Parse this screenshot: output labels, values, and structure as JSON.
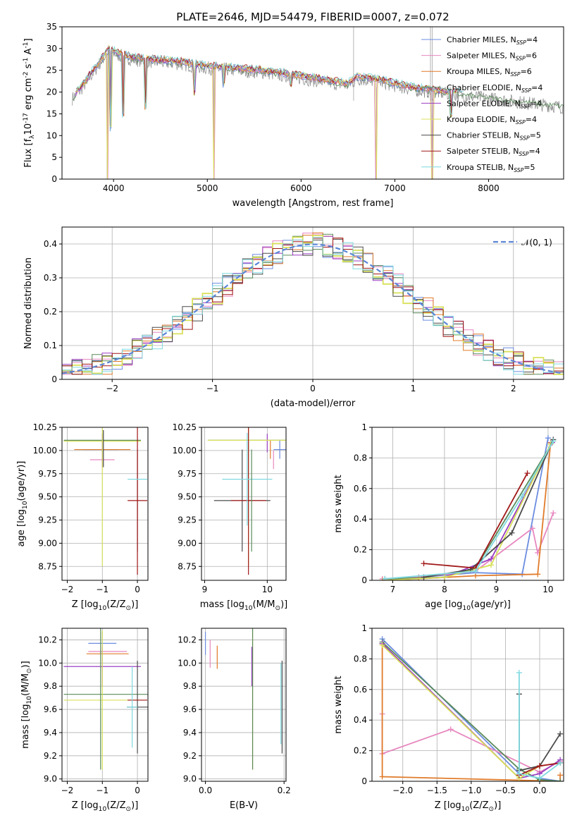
{
  "figure_title": "PLATE=2646, MJD=54479, FIBERID=0007, z=0.072",
  "palette": [
    "#6b8ce0",
    "#e787bf",
    "#e07b2b",
    "#5a8a5a",
    "#9b3fc2",
    "#d9e05a",
    "#4a4a4a",
    "#a01818",
    "#7fd9e0"
  ],
  "chart_data": [
    {
      "id": "spectrum",
      "type": "line",
      "xlabel": "wavelength [Angstrom, rest frame]",
      "ylabel": "Flux [f$_\\lambda$10$^{-17}$ erg cm$^{-2}$ s$^{-1}$ A$^{-1}$]",
      "xlim": [
        3450,
        8800
      ],
      "ylim": [
        0,
        35
      ],
      "xticks": [
        4000,
        5000,
        6000,
        7000,
        8000
      ],
      "yticks": [
        0,
        5,
        10,
        15,
        20,
        25,
        30,
        35
      ],
      "legend_position": "top-right",
      "legend": [
        {
          "label": "Chabrier MILES, N",
          "sub": "SSP",
          "suffix": "=4"
        },
        {
          "label": "Salpeter MILES, N",
          "sub": "SSP",
          "suffix": "=6"
        },
        {
          "label": "Kroupa MILES, N",
          "sub": "SSP",
          "suffix": "=6"
        },
        {
          "label": "Chabrier ELODIE, N",
          "sub": "SSP",
          "suffix": "=4"
        },
        {
          "label": "Salpeter ELODIE, N",
          "sub": "SSP",
          "suffix": "=4"
        },
        {
          "label": "Kroupa ELODIE, N",
          "sub": "SSP",
          "suffix": "=4"
        },
        {
          "label": "Chabrier STELIB, N",
          "sub": "SSP",
          "suffix": "=5"
        },
        {
          "label": "Salpeter STELIB, N",
          "sub": "SSP",
          "suffix": "=4"
        },
        {
          "label": "Kroupa STELIB, N",
          "sub": "SSP",
          "suffix": "=5"
        }
      ],
      "continuum": {
        "x": [
          3560,
          3650,
          3750,
          3850,
          3950,
          4050,
          4200,
          4400,
          4700,
          5000,
          5300,
          5600,
          5900,
          6200,
          6500,
          6600,
          6800,
          7000,
          7200,
          7400,
          7600,
          7800,
          8000,
          8200,
          8400,
          8600,
          8800
        ],
        "y": [
          19,
          21,
          24,
          27,
          30,
          29,
          28,
          27.5,
          27,
          26,
          25.5,
          25,
          24,
          23,
          22,
          23.5,
          23,
          22,
          21,
          20.5,
          20,
          19.5,
          19,
          18.5,
          18,
          17.5,
          17
        ]
      },
      "absorption_dips": [
        {
          "x": 3934,
          "y": 0
        },
        {
          "x": 3968,
          "y": 11
        },
        {
          "x": 4102,
          "y": 14
        },
        {
          "x": 4340,
          "y": 16
        },
        {
          "x": 4861,
          "y": 19
        },
        {
          "x": 5070,
          "y": 0
        },
        {
          "x": 5175,
          "y": 21
        },
        {
          "x": 5890,
          "y": 21
        },
        {
          "x": 6800,
          "y": 0
        },
        {
          "x": 7400,
          "y": 0
        },
        {
          "x": 7600,
          "y": 14
        }
      ]
    },
    {
      "id": "residuals",
      "type": "line",
      "xlabel": "(data-model)/error",
      "ylabel": "Normed distribution",
      "xlim": [
        -2.5,
        2.5
      ],
      "ylim": [
        0,
        0.45
      ],
      "xticks": [
        -2,
        -1,
        0,
        1,
        2
      ],
      "yticks": [
        0.0,
        0.1,
        0.2,
        0.3,
        0.4
      ],
      "grid": true,
      "legend_position": "top-right",
      "legend_label": "𝒩(0, 1)",
      "gaussian": {
        "mean": 0,
        "sigma": 1
      }
    },
    {
      "id": "age-vs-Z",
      "type": "scatter",
      "xlabel": "Z [log$_{10}$(Z/Z$_\\odot$)]",
      "ylabel": "age  [log$_{10}$(age/yr)]",
      "xlim": [
        -2.15,
        0.3
      ],
      "ylim": [
        8.6,
        10.25
      ],
      "xticks": [
        -2,
        -1,
        0
      ],
      "yticks": [
        8.75,
        9.0,
        9.25,
        9.5,
        9.75,
        10.0,
        10.25
      ],
      "ytick_labels": [
        "8.75",
        "9.00",
        "9.25",
        "9.50",
        "9.75",
        "10.00",
        "10.25"
      ],
      "grid": true,
      "points": [
        {
          "s": 0,
          "x": -1.05,
          "y": 10.01,
          "xe": 0.5,
          "ye": 0.0
        },
        {
          "s": 1,
          "x": -1.0,
          "y": 9.9,
          "xe": 0.35,
          "ye": 0.0
        },
        {
          "s": 2,
          "x": -1.0,
          "y": 10.01,
          "xe": 0.8,
          "ye": 0.0
        },
        {
          "s": 3,
          "x": -1.0,
          "y": 10.11,
          "xe": 1.1,
          "ye": 0.0
        },
        {
          "s": 4,
          "x": -1.0,
          "y": 10.0,
          "xe": 0.0,
          "ye": 0.18
        },
        {
          "s": 5,
          "x": -1.0,
          "y": 10.1,
          "xe": 1.1,
          "ye": 1.35
        },
        {
          "s": 6,
          "x": 0.0,
          "y": 9.46,
          "xe": 0.0,
          "ye": 0.55
        },
        {
          "s": 7,
          "x": 0.0,
          "y": 9.46,
          "xe": 0.28,
          "ye": 0.8
        },
        {
          "s": 8,
          "x": 0.0,
          "y": 9.69,
          "xe": 0.28,
          "ye": 0.0
        },
        {
          "s": 6,
          "x": -0.97,
          "y": 10.02,
          "xe": 0.0,
          "ye": 0.2
        }
      ]
    },
    {
      "id": "age-vs-mass",
      "type": "scatter",
      "xlabel": "mass [log$_{10}$(M/M$_\\odot$)]",
      "ylabel": "",
      "xlim": [
        8.95,
        10.3
      ],
      "ylim": [
        8.6,
        10.25
      ],
      "xticks": [
        9,
        10
      ],
      "yticks": [
        8.75,
        9.0,
        9.25,
        9.5,
        9.75,
        10.0,
        10.25
      ],
      "ytick_labels": [
        "8.75",
        "9.00",
        "9.25",
        "9.50",
        "9.75",
        "10.00",
        "10.25"
      ],
      "grid": true,
      "points": [
        {
          "s": 0,
          "x": 10.2,
          "y": 10.01,
          "xe": 0.1,
          "ye": 0.1
        },
        {
          "s": 1,
          "x": 10.1,
          "y": 9.9,
          "xe": 0.0,
          "ye": 0.1
        },
        {
          "s": 2,
          "x": 10.05,
          "y": 10.01,
          "xe": 0.0,
          "ye": 0.1
        },
        {
          "s": 3,
          "x": 9.7,
          "y": 10.11,
          "xe": 0.65,
          "ye": 0.0
        },
        {
          "s": 4,
          "x": 10.0,
          "y": 10.08,
          "xe": 0.0,
          "ye": 0.1
        },
        {
          "s": 5,
          "x": 9.7,
          "y": 10.11,
          "xe": 0.65,
          "ye": 1.35
        },
        {
          "s": 6,
          "x": 9.6,
          "y": 9.46,
          "xe": 0.45,
          "ye": 0.55
        },
        {
          "s": 7,
          "x": 9.7,
          "y": 9.46,
          "xe": 0.28,
          "ye": 0.8
        },
        {
          "s": 8,
          "x": 9.68,
          "y": 9.69,
          "xe": 0.4,
          "ye": 0.5
        },
        {
          "s": 3,
          "x": 9.75,
          "y": 9.46,
          "xe": 0.0,
          "ye": 0.55
        }
      ]
    },
    {
      "id": "massweight-vs-age",
      "type": "line",
      "xlabel": "age  [log$_{10}$(age/yr)]",
      "ylabel": "mass weight",
      "xlim": [
        6.6,
        10.3
      ],
      "ylim": [
        0,
        1.0
      ],
      "xticks": [
        7,
        8,
        9,
        10
      ],
      "yticks": [
        0.0,
        0.2,
        0.4,
        0.6,
        0.8,
        1.0
      ],
      "grid": true,
      "series": [
        {
          "s": 0,
          "x": [
            6.85,
            7.5,
            8.6,
            9.5,
            10.0
          ],
          "y": [
            0.0,
            0.02,
            0.05,
            0.04,
            0.93
          ]
        },
        {
          "s": 1,
          "x": [
            6.8,
            7.5,
            8.6,
            9.7,
            9.8,
            10.1
          ],
          "y": [
            0.01,
            0.02,
            0.06,
            0.34,
            0.18,
            0.44
          ]
        },
        {
          "s": 2,
          "x": [
            6.8,
            7.5,
            8.6,
            9.8,
            10.05
          ],
          "y": [
            0.0,
            0.01,
            0.03,
            0.04,
            0.9
          ]
        },
        {
          "s": 3,
          "x": [
            6.85,
            8.0,
            8.6,
            10.1
          ],
          "y": [
            0.01,
            0.02,
            0.08,
            0.91
          ]
        },
        {
          "s": 4,
          "x": [
            6.85,
            8.0,
            8.9,
            10.08
          ],
          "y": [
            0.0,
            0.02,
            0.14,
            0.9
          ]
        },
        {
          "s": 5,
          "x": [
            6.85,
            8.0,
            8.9,
            10.05
          ],
          "y": [
            0.0,
            0.02,
            0.1,
            0.89
          ]
        },
        {
          "s": 6,
          "x": [
            7.6,
            8.5,
            9.3,
            10.1
          ],
          "y": [
            0.02,
            0.07,
            0.31,
            0.92
          ]
        },
        {
          "s": 7,
          "x": [
            7.6,
            8.6,
            9.6
          ],
          "y": [
            0.11,
            0.08,
            0.7
          ]
        },
        {
          "s": 8,
          "x": [
            6.85,
            8.6,
            9.5,
            10.1
          ],
          "y": [
            0.01,
            0.06,
            0.55,
            0.91
          ]
        }
      ]
    },
    {
      "id": "mass-vs-Z",
      "type": "scatter",
      "xlabel": "Z [log$_{10}$(Z/Z$_\\odot$)]",
      "ylabel": "mass [log$_{10}$(M/M$_\\odot$)]",
      "xlim": [
        -2.15,
        0.3
      ],
      "ylim": [
        8.98,
        10.3
      ],
      "xticks": [
        -2,
        -1,
        0
      ],
      "yticks": [
        9.0,
        9.2,
        9.4,
        9.6,
        9.8,
        10.0,
        10.2
      ],
      "ytick_labels": [
        "9.0",
        "9.2",
        "9.4",
        "9.6",
        "9.8",
        "10.0",
        "10.2"
      ],
      "grid": true,
      "points": [
        {
          "s": 0,
          "x": -1.0,
          "y": 10.17,
          "xe": 0.4,
          "ye": 0.1
        },
        {
          "s": 1,
          "x": -0.85,
          "y": 10.1,
          "xe": 0.55,
          "ye": 0.0
        },
        {
          "s": 2,
          "x": -0.85,
          "y": 10.08,
          "xe": 0.6,
          "ye": 0.0
        },
        {
          "s": 3,
          "x": -0.9,
          "y": 9.73,
          "xe": 1.2,
          "ye": 0.0
        },
        {
          "s": 4,
          "x": -1.0,
          "y": 9.97,
          "xe": 1.1,
          "ye": 0.17
        },
        {
          "s": 5,
          "x": -1.0,
          "y": 9.68,
          "xe": 1.1,
          "ye": 0.6
        },
        {
          "s": 6,
          "x": 0.0,
          "y": 9.62,
          "xe": 0.3,
          "ye": 0.4
        },
        {
          "s": 7,
          "x": 0.0,
          "y": 9.68,
          "xe": 0.28,
          "ye": 0.0
        },
        {
          "s": 8,
          "x": -0.15,
          "y": 9.62,
          "xe": 0.15,
          "ye": 0.35
        },
        {
          "s": 3,
          "x": -1.05,
          "y": 9.73,
          "xe": 0.0,
          "ye": 0.65
        }
      ]
    },
    {
      "id": "mass-vs-EBV",
      "type": "scatter",
      "xlabel": "E(B-V)",
      "ylabel": "",
      "xlim": [
        -0.01,
        0.205
      ],
      "ylim": [
        8.98,
        10.3
      ],
      "xticks": [
        0.0,
        0.2
      ],
      "xtick_labels": [
        "0.0",
        "0.2"
      ],
      "yticks": [
        9.0,
        9.2,
        9.4,
        9.6,
        9.8,
        10.0,
        10.2
      ],
      "ytick_labels": [
        "9.0",
        "9.2",
        "9.4",
        "9.6",
        "9.8",
        "10.0",
        "10.2"
      ],
      "grid": true,
      "points": [
        {
          "s": 0,
          "x": 0.0,
          "y": 10.17,
          "xe": 0.0,
          "ye": 0.1
        },
        {
          "s": 1,
          "x": 0.012,
          "y": 10.08,
          "xe": 0.0,
          "ye": 0.12
        },
        {
          "s": 2,
          "x": 0.03,
          "y": 10.05,
          "xe": 0.0,
          "ye": 0.1
        },
        {
          "s": 4,
          "x": 0.118,
          "y": 9.97,
          "xe": 0.0,
          "ye": 0.17
        },
        {
          "s": 5,
          "x": 0.12,
          "y": 9.68,
          "xe": 0.0,
          "ye": 0.6
        },
        {
          "s": 3,
          "x": 0.12,
          "y": 9.73,
          "xe": 0.0,
          "ye": 0.65
        },
        {
          "s": 6,
          "x": 0.195,
          "y": 9.62,
          "xe": 0.0,
          "ye": 0.4
        },
        {
          "s": 8,
          "x": 0.192,
          "y": 9.65,
          "xe": 0.0,
          "ye": 0.35
        }
      ]
    },
    {
      "id": "massweight-vs-Z",
      "type": "line",
      "xlabel": "Z [log$_{10}$(Z/Z$_\\odot$)]",
      "ylabel": "mass weight",
      "xlim": [
        -2.45,
        0.35
      ],
      "ylim": [
        0,
        1.0
      ],
      "xticks": [
        -2.0,
        -1.5,
        -1.0,
        -0.5,
        0.0
      ],
      "xtick_labels": [
        "−2.0",
        "−1.5",
        "−1.0",
        "−0.5",
        "0.0"
      ],
      "yticks": [
        0.0,
        0.2,
        0.4,
        0.6,
        0.8,
        1.0
      ],
      "grid": true,
      "series": [
        {
          "s": 0,
          "x": [
            -2.3,
            -0.3,
            0.0,
            0.3
          ],
          "y": [
            0.93,
            0.05,
            0.02,
            0.0
          ]
        },
        {
          "s": 1,
          "x": [
            -2.3,
            -2.3,
            -1.3,
            0.0,
            0.3
          ],
          "y": [
            0.44,
            0.18,
            0.34,
            0.06,
            0.13
          ]
        },
        {
          "s": 2,
          "x": [
            -2.3,
            -2.3,
            0.3,
            0.3
          ],
          "y": [
            0.9,
            0.03,
            0.0,
            0.04
          ]
        },
        {
          "s": 3,
          "x": [
            -2.3,
            -0.3,
            0.0,
            0.3
          ],
          "y": [
            0.91,
            0.08,
            0.01,
            0.0
          ]
        },
        {
          "s": 4,
          "x": [
            -2.3,
            -0.3,
            0.0,
            0.3
          ],
          "y": [
            0.9,
            0.02,
            0.05,
            0.14
          ]
        },
        {
          "s": 5,
          "x": [
            -2.3,
            -0.3,
            0.0
          ],
          "y": [
            0.89,
            0.02,
            0.1
          ]
        },
        {
          "s": 6,
          "x": [
            -0.3,
            -0.3,
            0.0,
            0.3
          ],
          "y": [
            0.57,
            0.07,
            0.1,
            0.31
          ]
        },
        {
          "s": 7,
          "x": [
            -0.3,
            0.0,
            0.3
          ],
          "y": [
            0.04,
            0.1,
            0.12
          ]
        },
        {
          "s": 8,
          "x": [
            -0.3,
            -0.3,
            0.0,
            0.3
          ],
          "y": [
            0.71,
            0.05,
            0.02,
            0.12
          ]
        }
      ]
    }
  ]
}
